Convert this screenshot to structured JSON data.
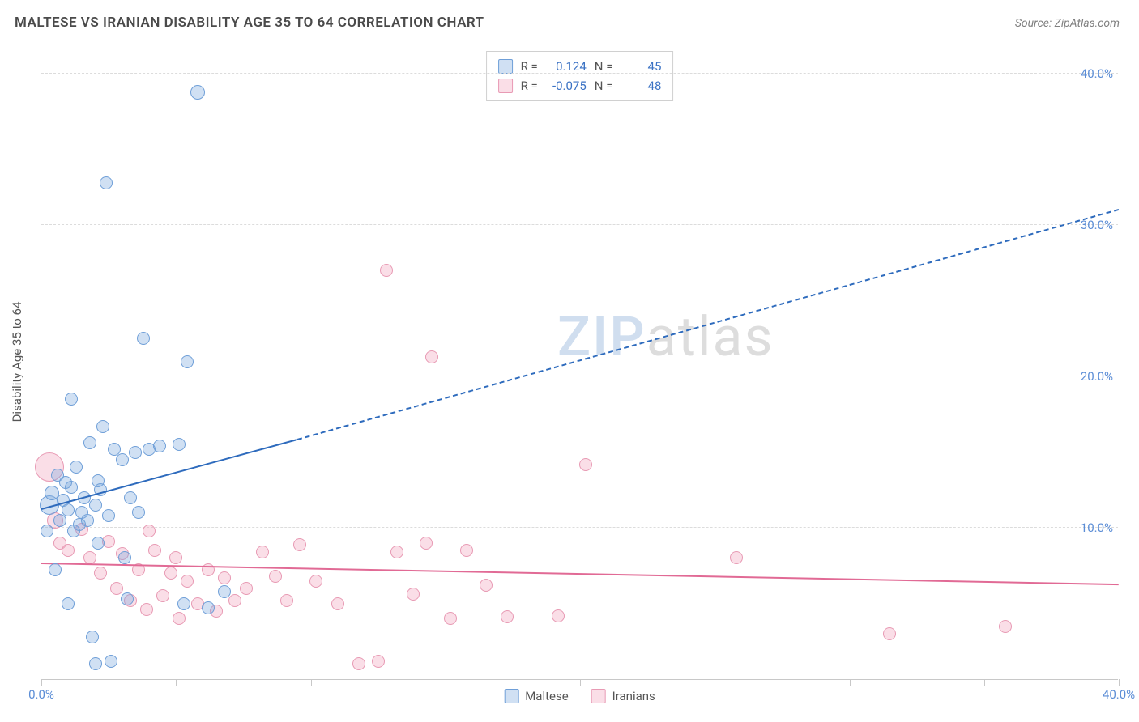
{
  "header": {
    "title": "MALTESE VS IRANIAN DISABILITY AGE 35 TO 64 CORRELATION CHART",
    "source": "Source: ZipAtlas.com"
  },
  "chart": {
    "type": "scatter",
    "y_axis_title": "Disability Age 35 to 64",
    "xlim": [
      0,
      40
    ],
    "ylim": [
      0,
      42
    ],
    "x_ticks": [
      0,
      5,
      10,
      15,
      20,
      25,
      30,
      35,
      40
    ],
    "x_tick_labels": {
      "0": "0.0%",
      "40": "40.0%"
    },
    "y_ticks": [
      10,
      20,
      30,
      40
    ],
    "y_tick_labels": {
      "10": "10.0%",
      "20": "20.0%",
      "30": "30.0%",
      "40": "40.0%"
    },
    "background_color": "#ffffff",
    "grid_color": "#dcdcdc",
    "axis_color": "#c8c8c8",
    "tick_label_color": "#5b8dd6",
    "series": {
      "maltese": {
        "label": "Maltese",
        "fill": "rgba(120,165,220,0.35)",
        "stroke": "#6f9fd8",
        "trend_color": "#2e6bbd",
        "marker_radius": 8,
        "R": "0.124",
        "N": "45",
        "trend": {
          "x1": 0,
          "y1": 11.2,
          "x2_solid": 9.5,
          "y2_solid": 15.8,
          "x2_dash": 40,
          "y2_dash": 31.0
        },
        "points": [
          {
            "x": 0.3,
            "y": 11.5,
            "r": 12
          },
          {
            "x": 0.4,
            "y": 12.3,
            "r": 9
          },
          {
            "x": 0.6,
            "y": 13.5,
            "r": 8
          },
          {
            "x": 0.7,
            "y": 10.5,
            "r": 8
          },
          {
            "x": 0.8,
            "y": 11.8,
            "r": 8
          },
          {
            "x": 1.0,
            "y": 11.2,
            "r": 8
          },
          {
            "x": 1.1,
            "y": 12.7,
            "r": 8
          },
          {
            "x": 1.2,
            "y": 9.8,
            "r": 8
          },
          {
            "x": 1.3,
            "y": 14.0,
            "r": 8
          },
          {
            "x": 1.4,
            "y": 10.2,
            "r": 8
          },
          {
            "x": 1.5,
            "y": 11.0,
            "r": 8
          },
          {
            "x": 1.6,
            "y": 12.0,
            "r": 8
          },
          {
            "x": 1.8,
            "y": 15.6,
            "r": 8
          },
          {
            "x": 2.0,
            "y": 11.5,
            "r": 8
          },
          {
            "x": 2.1,
            "y": 13.1,
            "r": 8
          },
          {
            "x": 2.3,
            "y": 16.7,
            "r": 8
          },
          {
            "x": 2.5,
            "y": 10.8,
            "r": 8
          },
          {
            "x": 2.7,
            "y": 15.2,
            "r": 8
          },
          {
            "x": 3.0,
            "y": 14.5,
            "r": 8
          },
          {
            "x": 3.1,
            "y": 8.0,
            "r": 8
          },
          {
            "x": 3.2,
            "y": 5.3,
            "r": 8
          },
          {
            "x": 3.5,
            "y": 15.0,
            "r": 8
          },
          {
            "x": 3.6,
            "y": 11.0,
            "r": 8
          },
          {
            "x": 4.0,
            "y": 15.2,
            "r": 8
          },
          {
            "x": 4.4,
            "y": 15.4,
            "r": 8
          },
          {
            "x": 1.1,
            "y": 18.5,
            "r": 8
          },
          {
            "x": 1.0,
            "y": 5.0,
            "r": 8
          },
          {
            "x": 2.6,
            "y": 1.2,
            "r": 8
          },
          {
            "x": 1.9,
            "y": 2.8,
            "r": 8
          },
          {
            "x": 2.0,
            "y": 1.0,
            "r": 8
          },
          {
            "x": 2.1,
            "y": 9.0,
            "r": 8
          },
          {
            "x": 0.5,
            "y": 7.2,
            "r": 8
          },
          {
            "x": 2.4,
            "y": 32.8,
            "r": 8
          },
          {
            "x": 5.8,
            "y": 38.8,
            "r": 9
          },
          {
            "x": 3.8,
            "y": 22.5,
            "r": 8
          },
          {
            "x": 5.4,
            "y": 21.0,
            "r": 8
          },
          {
            "x": 5.1,
            "y": 15.5,
            "r": 8
          },
          {
            "x": 6.2,
            "y": 4.7,
            "r": 8
          },
          {
            "x": 5.3,
            "y": 5.0,
            "r": 8
          },
          {
            "x": 6.8,
            "y": 5.8,
            "r": 8
          },
          {
            "x": 0.2,
            "y": 9.8,
            "r": 8
          },
          {
            "x": 0.9,
            "y": 13.0,
            "r": 8
          },
          {
            "x": 1.7,
            "y": 10.5,
            "r": 8
          },
          {
            "x": 2.2,
            "y": 12.5,
            "r": 8
          },
          {
            "x": 3.3,
            "y": 12.0,
            "r": 8
          }
        ]
      },
      "iranians": {
        "label": "Iranians",
        "fill": "rgba(240,160,185,0.35)",
        "stroke": "#e89ab4",
        "trend_color": "#e16a95",
        "marker_radius": 8,
        "R": "-0.075",
        "N": "48",
        "trend": {
          "x1": 0,
          "y1": 7.6,
          "x2_solid": 40,
          "y2_solid": 6.2,
          "x2_dash": 40,
          "y2_dash": 6.2
        },
        "points": [
          {
            "x": 0.3,
            "y": 14.0,
            "r": 18
          },
          {
            "x": 0.5,
            "y": 10.5,
            "r": 10
          },
          {
            "x": 0.7,
            "y": 9.0,
            "r": 8
          },
          {
            "x": 1.0,
            "y": 8.5,
            "r": 8
          },
          {
            "x": 1.5,
            "y": 9.9,
            "r": 8
          },
          {
            "x": 1.8,
            "y": 8.0,
            "r": 8
          },
          {
            "x": 2.2,
            "y": 7.0,
            "r": 8
          },
          {
            "x": 2.5,
            "y": 9.1,
            "r": 8
          },
          {
            "x": 2.8,
            "y": 6.0,
            "r": 8
          },
          {
            "x": 3.0,
            "y": 8.3,
            "r": 8
          },
          {
            "x": 3.3,
            "y": 5.2,
            "r": 8
          },
          {
            "x": 3.6,
            "y": 7.2,
            "r": 8
          },
          {
            "x": 3.9,
            "y": 4.6,
            "r": 8
          },
          {
            "x": 4.2,
            "y": 8.5,
            "r": 8
          },
          {
            "x": 4.5,
            "y": 5.5,
            "r": 8
          },
          {
            "x": 4.8,
            "y": 7.0,
            "r": 8
          },
          {
            "x": 5.1,
            "y": 4.0,
            "r": 8
          },
          {
            "x": 5.4,
            "y": 6.5,
            "r": 8
          },
          {
            "x": 5.8,
            "y": 5.0,
            "r": 8
          },
          {
            "x": 6.2,
            "y": 7.2,
            "r": 8
          },
          {
            "x": 6.8,
            "y": 6.7,
            "r": 8
          },
          {
            "x": 7.2,
            "y": 5.2,
            "r": 8
          },
          {
            "x": 7.6,
            "y": 6.0,
            "r": 8
          },
          {
            "x": 8.2,
            "y": 8.4,
            "r": 8
          },
          {
            "x": 8.7,
            "y": 6.8,
            "r": 8
          },
          {
            "x": 9.1,
            "y": 5.2,
            "r": 8
          },
          {
            "x": 9.6,
            "y": 8.9,
            "r": 8
          },
          {
            "x": 10.2,
            "y": 6.5,
            "r": 8
          },
          {
            "x": 11.0,
            "y": 5.0,
            "r": 8
          },
          {
            "x": 11.8,
            "y": 1.0,
            "r": 8
          },
          {
            "x": 12.5,
            "y": 1.2,
            "r": 8
          },
          {
            "x": 12.8,
            "y": 27.0,
            "r": 8
          },
          {
            "x": 13.2,
            "y": 8.4,
            "r": 8
          },
          {
            "x": 13.8,
            "y": 5.6,
            "r": 8
          },
          {
            "x": 14.3,
            "y": 9.0,
            "r": 8
          },
          {
            "x": 14.5,
            "y": 21.3,
            "r": 8
          },
          {
            "x": 15.2,
            "y": 4.0,
            "r": 8
          },
          {
            "x": 15.8,
            "y": 8.5,
            "r": 8
          },
          {
            "x": 16.5,
            "y": 6.2,
            "r": 8
          },
          {
            "x": 17.3,
            "y": 4.1,
            "r": 8
          },
          {
            "x": 19.2,
            "y": 4.2,
            "r": 8
          },
          {
            "x": 20.2,
            "y": 14.2,
            "r": 8
          },
          {
            "x": 25.8,
            "y": 8.0,
            "r": 8
          },
          {
            "x": 31.5,
            "y": 3.0,
            "r": 8
          },
          {
            "x": 35.8,
            "y": 3.5,
            "r": 8
          },
          {
            "x": 4.0,
            "y": 9.8,
            "r": 8
          },
          {
            "x": 5.0,
            "y": 8.0,
            "r": 8
          },
          {
            "x": 6.5,
            "y": 4.5,
            "r": 8
          }
        ]
      }
    },
    "stats_box": {
      "R_label": "R =",
      "N_label": "N ="
    },
    "watermark": {
      "zip": "ZIP",
      "atlas": "atlas"
    }
  }
}
